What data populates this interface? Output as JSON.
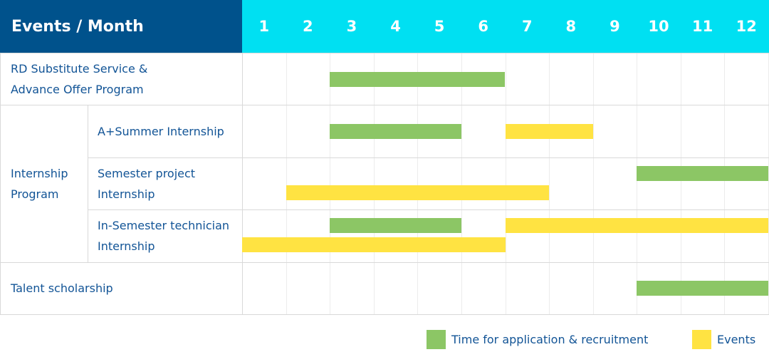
{
  "header": {
    "title": "Events / Month"
  },
  "colors": {
    "header_dark": "#00528c",
    "header_cyan": "#00e0f2",
    "application": "#8cc665",
    "events": "#ffe342",
    "text": "#125496"
  },
  "chart_data": {
    "type": "gantt",
    "categories": [
      "1",
      "2",
      "3",
      "4",
      "5",
      "6",
      "7",
      "8",
      "9",
      "10",
      "11",
      "12"
    ],
    "legend": [
      {
        "key": "application",
        "label": "Time for application & recruitment"
      },
      {
        "key": "events",
        "label": "Events"
      }
    ],
    "legend_position": "bottom-right",
    "groups": [
      {
        "label": "",
        "rows": [
          {
            "label": "RD Substitute Service & Advance Offer Program",
            "lanes": [
              [
                {
                  "type": "application",
                  "start": 3,
                  "end": 6
                }
              ]
            ]
          }
        ]
      },
      {
        "label": "Internship Program",
        "rows": [
          {
            "label": "A+Summer Internship",
            "lanes": [
              [
                {
                  "type": "application",
                  "start": 3,
                  "end": 5
                },
                {
                  "type": "events",
                  "start": 7,
                  "end": 8
                }
              ]
            ]
          },
          {
            "label": "Semester project Internship",
            "lanes": [
              [
                {
                  "type": "application",
                  "start": 10,
                  "end": 12
                }
              ],
              [
                {
                  "type": "events",
                  "start": 2,
                  "end": 7
                }
              ]
            ]
          },
          {
            "label": "In-Semester technician Internship",
            "lanes": [
              [
                {
                  "type": "application",
                  "start": 3,
                  "end": 5
                },
                {
                  "type": "events",
                  "start": 7,
                  "end": 12
                }
              ],
              [
                {
                  "type": "events",
                  "start": 1,
                  "end": 6
                }
              ]
            ]
          }
        ]
      },
      {
        "label": "",
        "rows": [
          {
            "label": "Talent scholarship",
            "lanes": [
              [
                {
                  "type": "application",
                  "start": 10,
                  "end": 12
                }
              ]
            ]
          }
        ]
      }
    ]
  }
}
